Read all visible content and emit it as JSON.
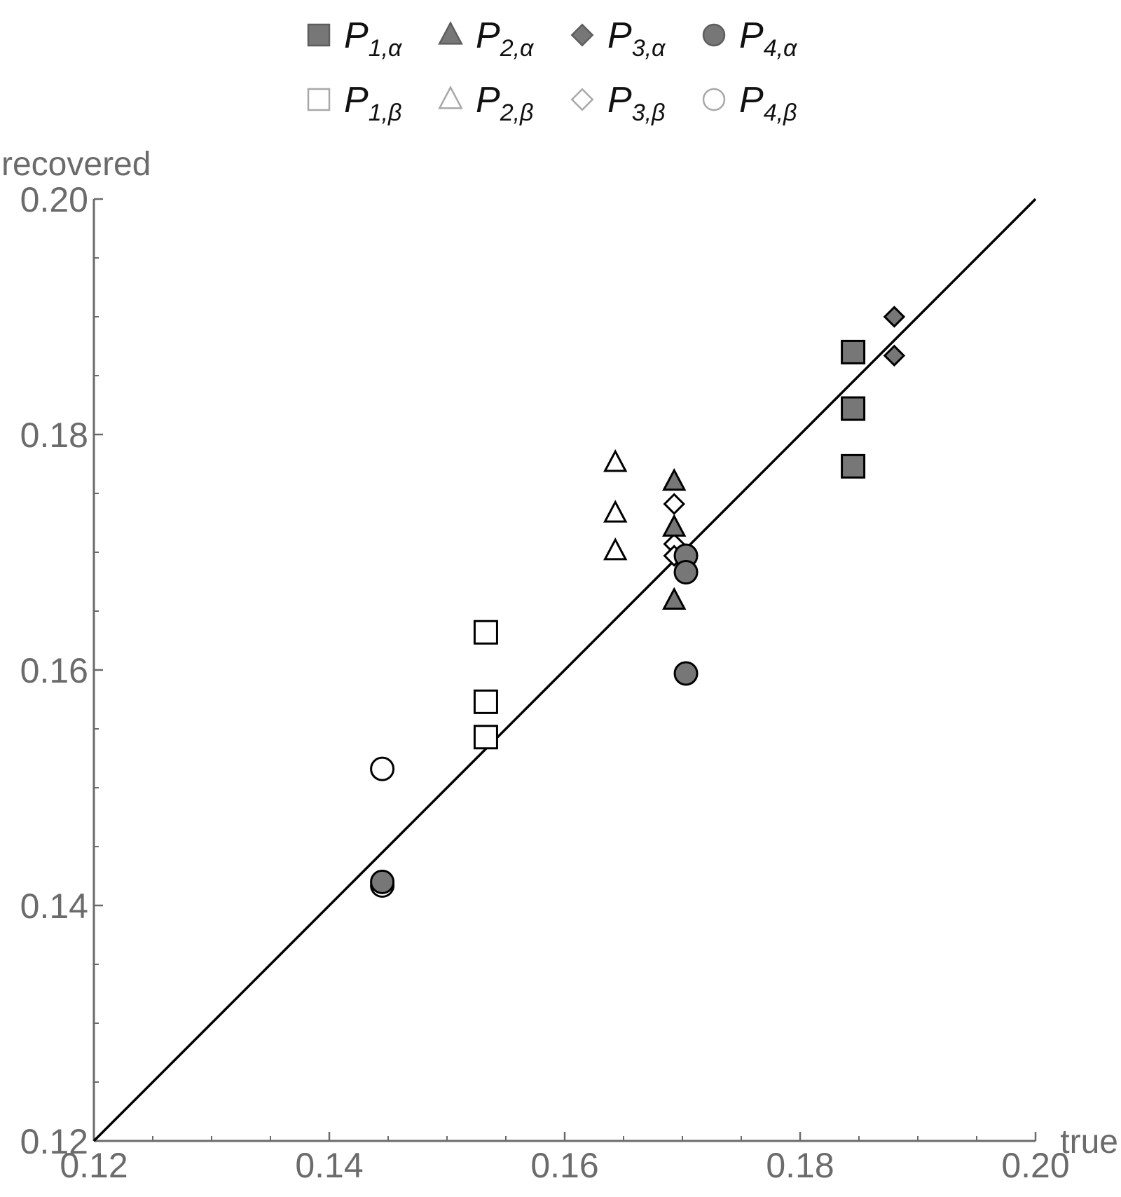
{
  "chart_data": {
    "type": "scatter",
    "xlabel": "true",
    "ylabel": "recovered",
    "xlim": [
      0.12,
      0.2
    ],
    "ylim": [
      0.12,
      0.2
    ],
    "x_ticks": [
      "0.12",
      "0.14",
      "0.16",
      "0.18",
      "0.20"
    ],
    "y_ticks": [
      "0.12",
      "0.14",
      "0.16",
      "0.18",
      "0.20"
    ],
    "reference_line": {
      "x": [
        0.12,
        0.2
      ],
      "y": [
        0.12,
        0.2
      ]
    },
    "legend_placement": "top",
    "colors": {
      "filled": "#777777",
      "hollow": "#ffffff",
      "axis": "#6b6b6b",
      "line": "#000000"
    },
    "series": [
      {
        "name": "P",
        "subscript": "1,α",
        "marker": "square",
        "fill": "filled",
        "points": [
          [
            0.1845,
            0.187
          ],
          [
            0.1845,
            0.1822
          ],
          [
            0.1845,
            0.1773
          ]
        ]
      },
      {
        "name": "P",
        "subscript": "2,α",
        "marker": "triangle",
        "fill": "filled",
        "points": [
          [
            0.1693,
            0.176
          ],
          [
            0.1693,
            0.1721
          ],
          [
            0.1693,
            0.1659
          ]
        ]
      },
      {
        "name": "P",
        "subscript": "3,α",
        "marker": "diamond",
        "fill": "filled",
        "points": [
          [
            0.188,
            0.19
          ],
          [
            0.188,
            0.1867
          ]
        ]
      },
      {
        "name": "P",
        "subscript": "4,α",
        "marker": "circle",
        "fill": "filled",
        "points": [
          [
            0.1703,
            0.1697
          ],
          [
            0.1703,
            0.1683
          ],
          [
            0.1703,
            0.1597
          ],
          [
            0.1445,
            0.142
          ]
        ]
      },
      {
        "name": "P",
        "subscript": "1,β",
        "marker": "square",
        "fill": "hollow",
        "points": [
          [
            0.1533,
            0.1632
          ],
          [
            0.1533,
            0.1573
          ],
          [
            0.1533,
            0.1543
          ]
        ]
      },
      {
        "name": "P",
        "subscript": "2,β",
        "marker": "triangle",
        "fill": "hollow",
        "points": [
          [
            0.1643,
            0.1776
          ],
          [
            0.1643,
            0.1733
          ],
          [
            0.1643,
            0.1701
          ]
        ]
      },
      {
        "name": "P",
        "subscript": "3,β",
        "marker": "diamond",
        "fill": "hollow",
        "points": [
          [
            0.1693,
            0.1741
          ],
          [
            0.1693,
            0.1707
          ],
          [
            0.1693,
            0.1697
          ]
        ]
      },
      {
        "name": "P",
        "subscript": "4,β",
        "marker": "circle",
        "fill": "hollow",
        "points": [
          [
            0.1445,
            0.1516
          ],
          [
            0.1445,
            0.1417
          ]
        ]
      }
    ]
  }
}
